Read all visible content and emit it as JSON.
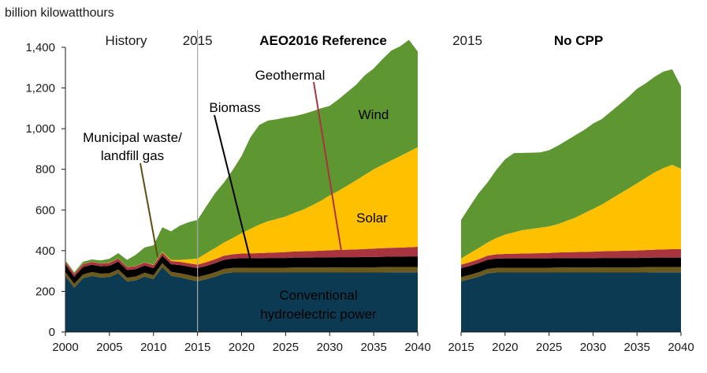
{
  "chart_data": {
    "type": "area",
    "stacked": true,
    "unit_label": "billion kilowatthours",
    "y_ticks": [
      "0",
      "200",
      "400",
      "600",
      "800",
      "1,000",
      "1,200",
      "1,400"
    ],
    "ylim": [
      0,
      1400
    ],
    "colors": {
      "Conventional hydroelectric power": "#0b3a52",
      "Municipal waste/landfill gas": "#6b5a1c",
      "Biomass": "#000000",
      "Geothermal": "#a8343f",
      "Solar": "#ffc000",
      "Wind": "#5e9732"
    },
    "panels": [
      {
        "title": "AEO2016 Reference",
        "history_label": "History",
        "divider_label": "2015",
        "xlim": [
          2000,
          2040
        ],
        "x_ticks": [
          "2000",
          "2005",
          "2010",
          "2015",
          "2020",
          "2025",
          "2030",
          "2035",
          "2040"
        ],
        "divider_year": 2015,
        "years": [
          2000,
          2001,
          2002,
          2003,
          2004,
          2005,
          2006,
          2007,
          2008,
          2009,
          2010,
          2011,
          2012,
          2013,
          2014,
          2015,
          2016,
          2017,
          2018,
          2019,
          2020,
          2021,
          2022,
          2023,
          2024,
          2025,
          2026,
          2027,
          2028,
          2029,
          2030,
          2031,
          2032,
          2033,
          2034,
          2035,
          2036,
          2037,
          2038,
          2039,
          2040
        ],
        "series": [
          {
            "name": "Conventional hydroelectric power",
            "values": [
              275,
              217,
              264,
              276,
              268,
              270,
              289,
              248,
              254,
              273,
              260,
              319,
              276,
              269,
              259,
              249,
              260,
              272,
              288,
              293,
              293,
              293,
              293,
              293,
              293,
              293,
              293,
              293,
              293,
              293,
              293,
              293,
              293,
              293,
              293,
              293,
              293,
              294,
              294,
              294,
              294
            ]
          },
          {
            "name": "Municipal waste/landfill gas",
            "values": [
              20,
              20,
              19,
              19,
              19,
              19,
              19,
              19,
              19,
              19,
              19,
              20,
              20,
              20,
              21,
              21,
              21,
              22,
              22,
              22,
              23,
              23,
              23,
              23,
              23,
              23,
              24,
              24,
              24,
              24,
              24,
              25,
              25,
              25,
              25,
              25,
              26,
              26,
              26,
              26,
              26
            ]
          },
          {
            "name": "Biomass",
            "values": [
              37,
              35,
              36,
              36,
              36,
              37,
              38,
              38,
              36,
              35,
              35,
              36,
              37,
              40,
              42,
              44,
              44,
              45,
              45,
              46,
              47,
              47,
              47,
              48,
              48,
              48,
              49,
              49,
              49,
              50,
              50,
              50,
              50,
              50,
              51,
              51,
              51,
              51,
              51,
              52,
              52
            ]
          },
          {
            "name": "Geothermal",
            "values": [
              14,
              14,
              14,
              14,
              14,
              15,
              15,
              15,
              15,
              15,
              15,
              16,
              16,
              16,
              16,
              17,
              18,
              19,
              20,
              21,
              23,
              24,
              25,
              26,
              27,
              29,
              30,
              31,
              32,
              33,
              35,
              36,
              37,
              38,
              39,
              41,
              42,
              43,
              44,
              45,
              47
            ]
          },
          {
            "name": "Solar",
            "values": [
              1,
              1,
              1,
              1,
              1,
              1,
              1,
              1,
              1,
              1,
              2,
              3,
              5,
              10,
              20,
              30,
              45,
              55,
              65,
              80,
              100,
              120,
              140,
              155,
              165,
              175,
              190,
              205,
              225,
              245,
              270,
              290,
              315,
              340,
              365,
              390,
              410,
              430,
              450,
              470,
              490
            ]
          },
          {
            "name": "Wind",
            "values": [
              6,
              7,
              11,
              11,
              14,
              18,
              26,
              34,
              55,
              73,
              95,
              121,
              141,
              168,
              182,
              190,
              230,
              270,
              295,
              335,
              380,
              450,
              490,
              495,
              490,
              487,
              475,
              470,
              462,
              455,
              440,
              450,
              460,
              470,
              490,
              496,
              520,
              540,
              540,
              550,
              470
            ]
          }
        ]
      },
      {
        "title": "No CPP",
        "divider_label": "2015",
        "xlim": [
          2015,
          2040
        ],
        "x_ticks": [
          "2015",
          "2020",
          "2025",
          "2030",
          "2035",
          "2040"
        ],
        "years": [
          2015,
          2016,
          2017,
          2018,
          2019,
          2020,
          2021,
          2022,
          2023,
          2024,
          2025,
          2026,
          2027,
          2028,
          2029,
          2030,
          2031,
          2032,
          2033,
          2034,
          2035,
          2036,
          2037,
          2038,
          2039,
          2040
        ],
        "series": [
          {
            "name": "Conventional hydroelectric power",
            "values": [
              249,
              260,
              272,
              288,
              293,
              293,
              293,
              293,
              293,
              293,
              293,
              293,
              293,
              293,
              293,
              293,
              293,
              293,
              293,
              293,
              293,
              293,
              294,
              294,
              294,
              294
            ]
          },
          {
            "name": "Municipal waste/landfill gas",
            "values": [
              21,
              21,
              22,
              22,
              22,
              23,
              23,
              23,
              23,
              23,
              23,
              24,
              24,
              24,
              24,
              24,
              25,
              25,
              25,
              25,
              25,
              26,
              26,
              26,
              26,
              26
            ]
          },
          {
            "name": "Biomass",
            "values": [
              44,
              44,
              45,
              45,
              46,
              46,
              46,
              46,
              46,
              46,
              46,
              46,
              46,
              46,
              46,
              46,
              46,
              46,
              46,
              46,
              46,
              46,
              46,
              46,
              46,
              46
            ]
          },
          {
            "name": "Geothermal",
            "values": [
              17,
              18,
              19,
              20,
              21,
              22,
              23,
              24,
              25,
              26,
              27,
              28,
              29,
              30,
              31,
              32,
              33,
              34,
              35,
              36,
              37,
              38,
              39,
              40,
              41,
              42
            ]
          },
          {
            "name": "Solar",
            "values": [
              30,
              45,
              55,
              65,
              80,
              95,
              105,
              115,
              120,
              125,
              130,
              140,
              155,
              170,
              190,
              210,
              230,
              255,
              280,
              305,
              330,
              355,
              380,
              400,
              415,
              395
            ]
          },
          {
            "name": "Wind",
            "values": [
              190,
              230,
              270,
              295,
              335,
              370,
              390,
              380,
              375,
              370,
              375,
              385,
              395,
              405,
              410,
              420,
              420,
              430,
              440,
              450,
              465,
              465,
              470,
              475,
              470,
              405
            ]
          }
        ]
      }
    ],
    "annotations": [
      {
        "text": "Conventional",
        "series": "Conventional hydroelectric power",
        "color": "#ffffff"
      },
      {
        "text": "hydroelectric power",
        "series": "Conventional hydroelectric power",
        "color": "#ffffff"
      },
      {
        "text": "Municipal waste/",
        "series": "Municipal waste/landfill gas",
        "color": "#5c4d12"
      },
      {
        "text": "landfill gas",
        "series": "Municipal waste/landfill gas",
        "color": "#5c4d12"
      },
      {
        "text": "Biomass",
        "series": "Biomass",
        "color": "#000000"
      },
      {
        "text": "Geothermal",
        "series": "Geothermal",
        "color": "#a8343f"
      },
      {
        "text": "Solar",
        "series": "Solar",
        "color": "#ffffff"
      },
      {
        "text": "Wind",
        "series": "Wind",
        "color": "#ffffff"
      }
    ]
  }
}
